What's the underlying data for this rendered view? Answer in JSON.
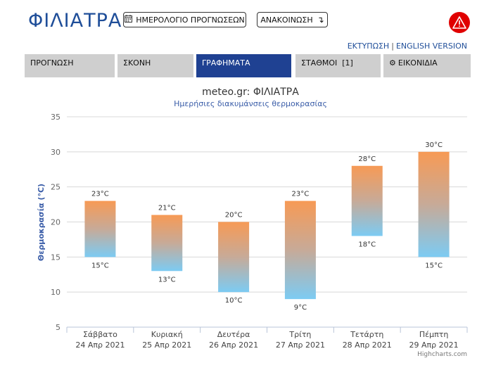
{
  "header": {
    "city": "ΦΙΛΙΑΤΡΑ",
    "calendar_button": "ΗΜΕΡΟΛΟΓΙΟ ΠΡΟΓΝΩΣΕΩΝ",
    "announcement_button": "ΑΝΑΚΟΙΝΩΣΗ",
    "print_link": "ΕΚΤΥΠΩΣΗ",
    "link_separator": "|",
    "english_link": "ENGLISH VERSION"
  },
  "tabs": [
    {
      "label": "ΠΡΟΓΝΩΣΗ",
      "active": false
    },
    {
      "label": "ΣΚΟΝΗ",
      "active": false
    },
    {
      "label": "ΓΡΑΦΗΜΑΤΑ",
      "active": true
    },
    {
      "label": "ΣΤΑΘΜΟΙ  [1]",
      "active": false
    },
    {
      "label": "ΕΙΚΟΝΙΔΙΑ",
      "active": false
    }
  ],
  "colors": {
    "brand": "#1f4e99",
    "active_tab": "#1f4192",
    "tab_bg": "#cfcfcf",
    "alert": "#e00000",
    "bar_top": "#f79a55",
    "bar_bottom": "#7ccbf3",
    "axis_title": "#3a5da8"
  },
  "chart_data": {
    "type": "bar",
    "title": "meteo.gr: ΦΙΛΙΑΤΡΑ",
    "subtitle": "Ημερήσιες διακυμάνσεις θερμοκρασίας",
    "ylabel": "Θερμοκρασία (°C)",
    "xlabel": "",
    "ylim": [
      5,
      35
    ],
    "yticks": [
      5,
      10,
      15,
      20,
      25,
      30,
      35
    ],
    "grid": true,
    "categories": [
      [
        "Σάββατο",
        "24 Απρ 2021"
      ],
      [
        "Κυριακή",
        "25 Απρ 2021"
      ],
      [
        "Δευτέρα",
        "26 Απρ 2021"
      ],
      [
        "Τρίτη",
        "27 Απρ 2021"
      ],
      [
        "Τετάρτη",
        "28 Απρ 2021"
      ],
      [
        "Πέμπτη",
        "29 Απρ 2021"
      ]
    ],
    "series": [
      {
        "name": "",
        "low": [
          15,
          13,
          10,
          9,
          18,
          15
        ],
        "high": [
          23,
          21,
          20,
          23,
          28,
          30
        ]
      }
    ],
    "unit": "°C",
    "credits": "Highcharts.com"
  }
}
